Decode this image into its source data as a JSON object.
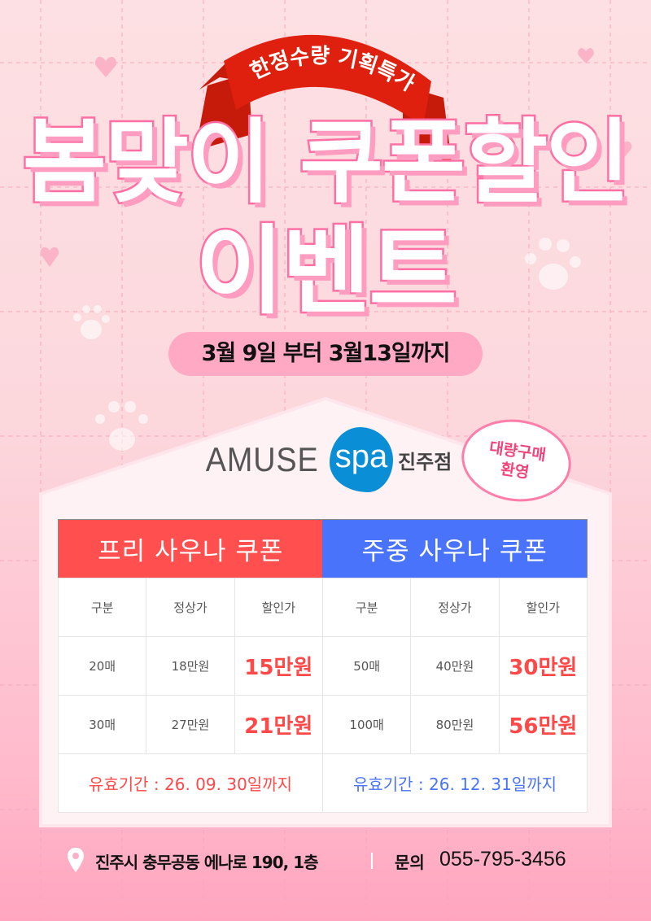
{
  "ribbon": {
    "text": "한정수량 기획특가",
    "color": "#e0200f"
  },
  "title": {
    "line1": "봄맞이 쿠폰할인",
    "line2": "이벤트"
  },
  "date_range": "3월 9일 부터 3월13일까지",
  "logo": {
    "brand": "AMUSE",
    "spa": "spa",
    "branch": "진주점"
  },
  "bubble": {
    "line1": "대량구매",
    "line2": "환영"
  },
  "coupons": [
    {
      "title": "프리 사우나 쿠폰",
      "color": "#ff4f4f",
      "headers": [
        "구분",
        "정상가",
        "할인가"
      ],
      "rows": [
        [
          "20매",
          "18만원",
          "15만원"
        ],
        [
          "30매",
          "27만원",
          "21만원"
        ]
      ],
      "validity": "유효기간 : 26. 09. 30일까지"
    },
    {
      "title": "주중 사우나 쿠폰",
      "color": "#4a73fb",
      "headers": [
        "구분",
        "정상가",
        "할인가"
      ],
      "rows": [
        [
          "50매",
          "40만원",
          "30만원"
        ],
        [
          "100매",
          "80만원",
          "56만원"
        ]
      ],
      "validity": "유효기간 : 26. 12. 31일까지"
    }
  ],
  "footer": {
    "address": "진주시 충무공동 에나로 190, 1층",
    "inquiry_label": "문의",
    "phone": "055-795-3456",
    "icon": "location-pin-icon"
  }
}
